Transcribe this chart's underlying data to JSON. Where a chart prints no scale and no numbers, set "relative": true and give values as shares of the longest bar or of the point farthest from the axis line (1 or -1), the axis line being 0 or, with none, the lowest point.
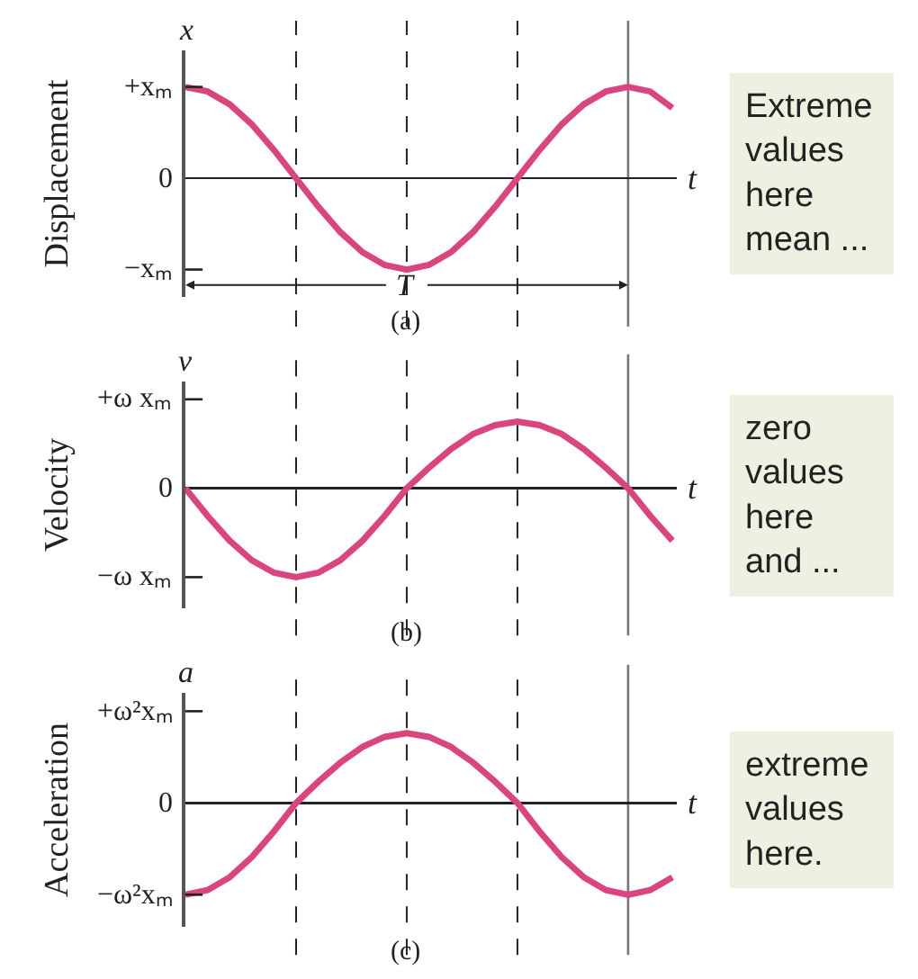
{
  "chart_data": [
    {
      "type": "line",
      "relative": true,
      "ylabel": "Displacement",
      "xlabel": "t",
      "grid": "x",
      "annotations": [
        "x",
        "(a)",
        "Extreme\nvalues\nhere\nmean ...",
        "T",
        "+xₘ",
        "0",
        "−xₘ"
      ],
      "categories": [
        null,
        null,
        null,
        null,
        null,
        null,
        null,
        null,
        null,
        null,
        null,
        null,
        null,
        null,
        null,
        null,
        null,
        null,
        null,
        null,
        null,
        null,
        null
      ],
      "series": [
        {
          "color": "#d9467f",
          "values": [
            1,
            0.95,
            0.81,
            0.59,
            0.31,
            0,
            -0.31,
            -0.59,
            -0.81,
            -0.95,
            -1,
            -0.95,
            -0.81,
            -0.59,
            -0.31,
            0,
            0.31,
            0.59,
            0.81,
            0.95,
            1,
            0.95,
            0.77
          ]
        }
      ]
    },
    {
      "type": "line",
      "relative": true,
      "ylabel": "Velocity",
      "xlabel": "t",
      "grid": "x",
      "annotations": [
        "v",
        "(b)",
        "zero\nvalues\nhere\nand ...",
        "+ω xₘ",
        "0",
        "−ω xₘ"
      ],
      "categories": [
        null,
        null,
        null,
        null,
        null,
        null,
        null,
        null,
        null,
        null,
        null,
        null,
        null,
        null,
        null,
        null,
        null,
        null,
        null,
        null,
        null,
        null,
        null
      ],
      "series": [
        {
          "color": "#d9467f",
          "values": [
            0,
            -0.31,
            -0.59,
            -0.81,
            -0.95,
            -1,
            -0.95,
            -0.81,
            -0.59,
            -0.31,
            0,
            0.23,
            0.44,
            0.61,
            0.71,
            0.75,
            0.71,
            0.61,
            0.44,
            0.23,
            0,
            -0.31,
            -0.59
          ]
        }
      ]
    },
    {
      "type": "line",
      "relative": true,
      "ylabel": "Acceleration",
      "xlabel": "t",
      "grid": "x",
      "annotations": [
        "a",
        "(c)",
        "extreme\nvalues\nhere.",
        "+ω²xₘ",
        "0",
        "−ω²xₘ"
      ],
      "categories": [
        null,
        null,
        null,
        null,
        null,
        null,
        null,
        null,
        null,
        null,
        null,
        null,
        null,
        null,
        null,
        null,
        null,
        null,
        null,
        null,
        null,
        null,
        null
      ],
      "series": [
        {
          "color": "#d9467f",
          "values": [
            -1,
            -0.95,
            -0.81,
            -0.59,
            -0.31,
            0,
            0.23,
            0.44,
            0.61,
            0.72,
            0.76,
            0.72,
            0.61,
            0.44,
            0.23,
            0,
            -0.31,
            -0.59,
            -0.81,
            -0.95,
            -1,
            -0.95,
            -0.81
          ]
        }
      ]
    }
  ]
}
